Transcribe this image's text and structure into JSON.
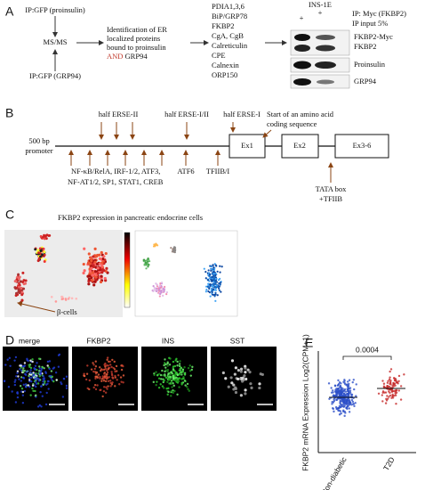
{
  "panel_labels": [
    "A",
    "B",
    "C",
    "D",
    "E"
  ],
  "panel_a": {
    "ip_proinsulin": "IP:GFP (proinsulin)",
    "ms": "MS/MS",
    "ip_grp94": "IP:GFP (GRP94)",
    "identification": [
      "Identification of ER",
      "localized proteins",
      "bound to proinsulin"
    ],
    "and": "AND",
    "grp94": "GRP94",
    "proteins": [
      "PDIA1,3,6",
      "BiP/GRP78",
      "FKBP2",
      "CgA, CgB",
      "Calreticulin",
      "CPE",
      "Calnexin",
      "ORP150"
    ],
    "protein_colors": [
      "#111111",
      "#a0522d",
      "#e67e22",
      "#7b1f1f",
      "#111111",
      "#a0522d",
      "#111111",
      "#111111"
    ],
    "cell_line": "INS-1E",
    "plus": "+",
    "ip_myc": "IP: Myc (FKBP2)",
    "ip_input": "IP input 5%",
    "blots": [
      "FKBP2-Myc",
      "FKBP2",
      "Proinsulin",
      "GRP94"
    ]
  },
  "panel_b": {
    "promoter": [
      "500 bp",
      "promoter"
    ],
    "above": [
      "half ERSE-II",
      "half ERSE-I/II",
      "half ERSE-I"
    ],
    "start": [
      "Start of an amino acid",
      "coding sequence"
    ],
    "exons": [
      "Ex1",
      "Ex2",
      "Ex3-6"
    ],
    "below": [
      "NF-κB/RelA, IRF-1/2, ATF3,",
      "NF-AT1/2, SP1, STAT1, CREB"
    ],
    "atf6": "ATF6",
    "tfiib": "TFIIB/I",
    "tata": [
      "TATA box",
      "+TFIIB"
    ]
  },
  "panel_c": {
    "title": "FKBP2 expression in pancreatic endocrine cells",
    "beta_cells": "β-cells"
  },
  "panel_d": {
    "channels": [
      "merge",
      "FKBP2",
      "INS",
      "SST"
    ],
    "channel_colors": [
      "#111111",
      "#c0392b",
      "#2e8b1e",
      "#111111"
    ]
  },
  "panel_e": {
    "y_label": "FKBP2 mRNA Expression Log2(CPM+1)",
    "categories": [
      "Non-diabetic",
      "T2D"
    ],
    "p_value": "0.0004"
  }
}
